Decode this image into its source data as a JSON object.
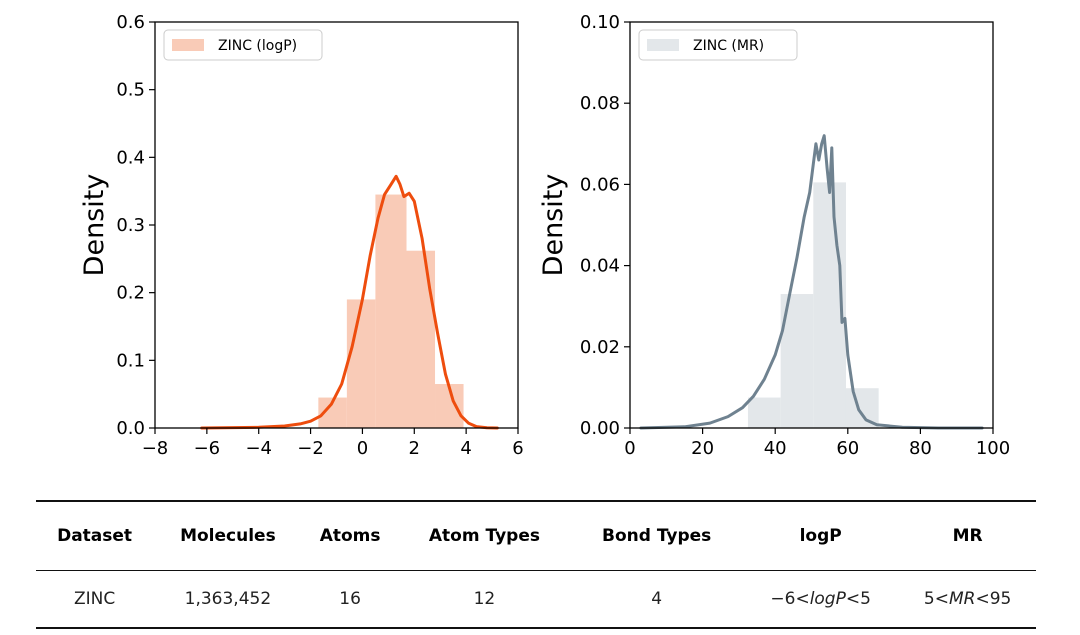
{
  "chart_data": [
    {
      "type": "histogram+kde",
      "ylabel": "Density",
      "xlim": [
        -8,
        6
      ],
      "ylim": [
        0,
        0.6
      ],
      "xticks": [
        "−8",
        "−6",
        "−4",
        "−2",
        "0",
        "2",
        "4",
        "6"
      ],
      "xtick_values": [
        -8,
        -6,
        -4,
        -2,
        0,
        2,
        4,
        6
      ],
      "yticks": [
        "0.0",
        "0.1",
        "0.2",
        "0.3",
        "0.4",
        "0.5",
        "0.6"
      ],
      "ytick_values": [
        0,
        0.1,
        0.2,
        0.3,
        0.4,
        0.5,
        0.6
      ],
      "legend": "ZINC (logP)",
      "legend_position": "top-left",
      "colors": {
        "hist": "#f9cbb7",
        "kde": "#ee4d0e",
        "legend_patch": "#f9cbb7"
      },
      "bins": [
        {
          "x0": -1.7,
          "x1": -0.6,
          "value": 0.045
        },
        {
          "x0": -0.6,
          "x1": 0.5,
          "value": 0.19
        },
        {
          "x0": 0.5,
          "x1": 1.7,
          "value": 0.345
        },
        {
          "x0": 1.7,
          "x1": 2.8,
          "value": 0.262
        },
        {
          "x0": 2.8,
          "x1": 3.9,
          "value": 0.065
        }
      ],
      "kde": {
        "x": [
          -6.2,
          -4.0,
          -3.0,
          -2.4,
          -2.0,
          -1.6,
          -1.2,
          -0.8,
          -0.4,
          0.0,
          0.3,
          0.6,
          0.85,
          1.1,
          1.3,
          1.45,
          1.6,
          1.8,
          2.0,
          2.3,
          2.6,
          2.9,
          3.2,
          3.5,
          3.8,
          4.1,
          4.4,
          4.8,
          5.2
        ],
        "y": [
          0.0,
          0.001,
          0.003,
          0.006,
          0.01,
          0.018,
          0.035,
          0.065,
          0.12,
          0.19,
          0.255,
          0.31,
          0.345,
          0.36,
          0.372,
          0.36,
          0.342,
          0.347,
          0.335,
          0.28,
          0.205,
          0.14,
          0.08,
          0.04,
          0.018,
          0.007,
          0.002,
          0.0005,
          0.0
        ]
      }
    },
    {
      "type": "histogram+kde",
      "ylabel": "Density",
      "xlim": [
        0,
        100
      ],
      "ylim": [
        0,
        0.1
      ],
      "xticks": [
        "0",
        "20",
        "40",
        "60",
        "80",
        "100"
      ],
      "xtick_values": [
        0,
        20,
        40,
        60,
        80,
        100
      ],
      "yticks": [
        "0.00",
        "0.02",
        "0.04",
        "0.06",
        "0.08",
        "0.10"
      ],
      "ytick_values": [
        0,
        0.02,
        0.04,
        0.06,
        0.08,
        0.1
      ],
      "legend": "ZINC (MR)",
      "legend_position": "top-left",
      "colors": {
        "hist": "#e3e7ea",
        "kde": "#6f8290",
        "legend_patch": "#e3e7ea"
      },
      "bins": [
        {
          "x0": 32.5,
          "x1": 41.5,
          "value": 0.0075
        },
        {
          "x0": 41.5,
          "x1": 50.5,
          "value": 0.033
        },
        {
          "x0": 50.5,
          "x1": 59.5,
          "value": 0.0605
        },
        {
          "x0": 59.5,
          "x1": 68.5,
          "value": 0.0098
        }
      ],
      "kde": {
        "x": [
          3,
          15,
          22,
          27,
          31,
          34,
          37,
          40,
          42,
          44,
          46,
          48,
          49.5,
          50.5,
          51.2,
          52,
          52.8,
          53.5,
          54.3,
          55,
          55.6,
          56.2,
          57,
          57.8,
          58.4,
          59.2,
          60,
          61.5,
          63,
          65,
          68,
          75,
          85,
          97
        ],
        "y": [
          0.0,
          0.0003,
          0.0012,
          0.0028,
          0.005,
          0.0078,
          0.012,
          0.018,
          0.024,
          0.033,
          0.042,
          0.052,
          0.058,
          0.065,
          0.07,
          0.066,
          0.07,
          0.072,
          0.064,
          0.058,
          0.069,
          0.052,
          0.045,
          0.04,
          0.026,
          0.027,
          0.018,
          0.009,
          0.0045,
          0.002,
          0.0008,
          0.0002,
          0.0,
          0.0
        ]
      }
    }
  ],
  "table": {
    "headers": [
      "Dataset",
      "Molecules",
      "Atoms",
      "Atom Types",
      "Bond Types",
      "logP",
      "MR"
    ],
    "row": {
      "dataset": "ZINC",
      "molecules": "1,363,452",
      "atoms": "16",
      "atom_types": "12",
      "bond_types": "4",
      "logp": {
        "lo": "−6",
        "lt1": "<",
        "var": "logP",
        "lt2": "<",
        "hi": "5"
      },
      "mr": {
        "lo": "5",
        "lt1": "<",
        "var": "MR",
        "lt2": "<",
        "hi": "95"
      }
    }
  }
}
